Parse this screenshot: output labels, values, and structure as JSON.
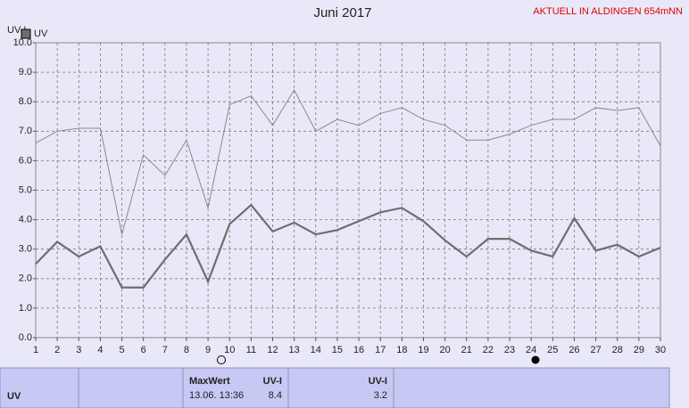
{
  "chart_data": {
    "type": "line",
    "title": "Juni 2017",
    "subtitle": "AKTUELL IN ALDINGEN 654mNN",
    "y_label": "UV-I",
    "x": [
      1,
      2,
      3,
      4,
      5,
      6,
      7,
      8,
      9,
      10,
      11,
      12,
      13,
      14,
      15,
      16,
      17,
      18,
      19,
      20,
      21,
      22,
      23,
      24,
      25,
      26,
      27,
      28,
      29,
      30
    ],
    "series": [
      {
        "name": "UV",
        "color": "#6e6e6e",
        "values": [
          2.5,
          3.25,
          2.75,
          3.1,
          1.7,
          1.7,
          2.65,
          3.5,
          1.9,
          3.85,
          4.5,
          3.6,
          3.9,
          3.5,
          3.65,
          3.95,
          4.25,
          4.4,
          3.95,
          3.3,
          2.75,
          3.35,
          3.35,
          2.95,
          2.75,
          4.05,
          2.95,
          3.15,
          2.75,
          3.05
        ]
      },
      {
        "color": "#8a8a8a",
        "values": [
          6.6,
          7.0,
          7.1,
          7.1,
          3.5,
          6.2,
          5.5,
          6.7,
          4.4,
          7.9,
          8.2,
          7.2,
          8.4,
          7.0,
          7.4,
          7.2,
          7.6,
          7.8,
          7.4,
          7.2,
          6.7,
          6.7,
          6.9,
          7.2,
          7.4,
          7.4,
          7.8,
          7.7,
          7.8,
          6.5
        ]
      }
    ],
    "xlim": [
      1,
      30
    ],
    "xticks": [
      1,
      2,
      3,
      4,
      5,
      6,
      7,
      8,
      9,
      10,
      11,
      12,
      13,
      14,
      15,
      16,
      17,
      18,
      19,
      20,
      21,
      22,
      23,
      24,
      25,
      26,
      27,
      28,
      29,
      30
    ],
    "ylim": [
      0,
      10
    ],
    "yticks": [
      {
        "value": 0,
        "label": "0.0"
      },
      {
        "value": 1,
        "label": "1.0"
      },
      {
        "value": 2,
        "label": "2.0"
      },
      {
        "value": 3,
        "label": "3.0"
      },
      {
        "value": 4,
        "label": "4.0"
      },
      {
        "value": 5,
        "label": "5.0"
      },
      {
        "value": 6,
        "label": "6.0"
      },
      {
        "value": 7,
        "label": "7.0"
      },
      {
        "value": 8,
        "label": "8.0"
      },
      {
        "value": 9,
        "label": "9.0"
      },
      {
        "value": 10,
        "label": "10.0"
      }
    ],
    "grid": true
  },
  "summary": {
    "label": "UV",
    "max_header": "MaxWert",
    "max_time": "13.06.  13:36",
    "max_unit": "UV-I",
    "max_value": "8.4",
    "cur_unit": "UV-I",
    "cur_value": "3.2"
  }
}
